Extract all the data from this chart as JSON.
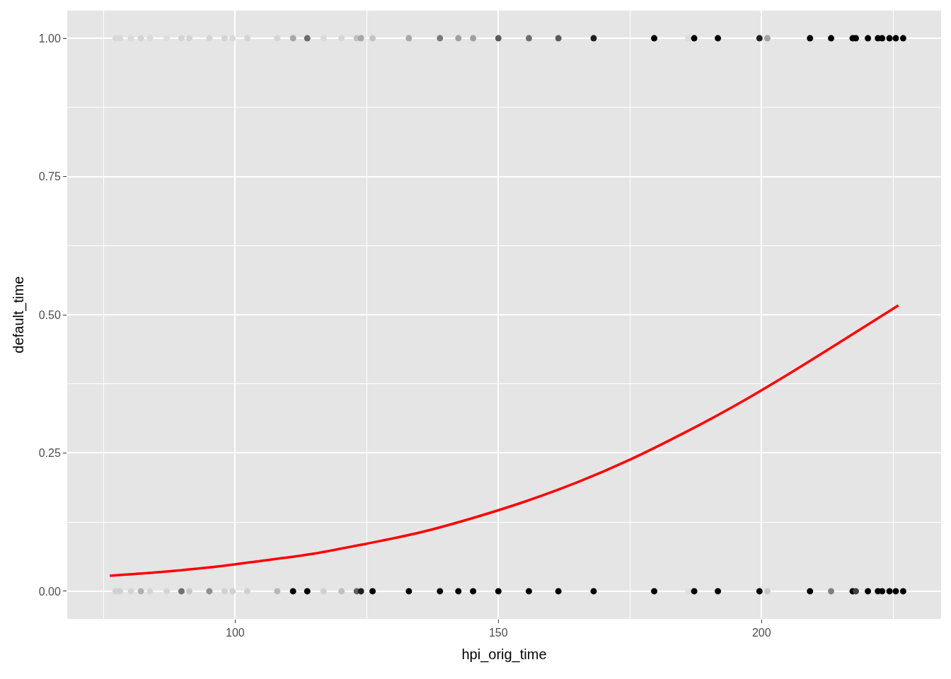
{
  "chart_data": {
    "type": "scatter",
    "xlabel": "hpi_orig_time",
    "ylabel": "default_time",
    "xlim": [
      68.1,
      234.1
    ],
    "ylim": [
      -0.05,
      1.05
    ],
    "xticks": [
      100,
      150,
      200
    ],
    "yticks": [
      {
        "value": 0,
        "label": "0.00"
      },
      {
        "value": 0.25,
        "label": "0.25"
      },
      {
        "value": 0.5,
        "label": "0.50"
      },
      {
        "value": 0.75,
        "label": "0.75"
      },
      {
        "value": 1,
        "label": "1.00"
      }
    ],
    "grid": true,
    "marker": "circle",
    "series": [
      {
        "x": [
          77.3,
          78.1,
          80.2,
          82.1,
          83.8,
          87.0,
          89.8,
          91.3,
          95.1,
          98.0,
          99.5,
          102.3,
          108.0,
          111.0,
          113.7,
          116.8,
          120.2,
          123.1,
          123.9,
          126.1,
          133.0,
          138.9,
          142.4,
          145.2,
          150.0,
          155.8,
          161.4,
          168.1,
          179.6,
          186.1,
          187.2,
          191.7,
          199.6,
          201.1,
          209.2,
          213.2,
          217.3,
          217.9,
          220.2,
          222.1,
          222.9,
          224.3,
          225.5,
          226.9
        ],
        "values": [
          1,
          1,
          1,
          1,
          1,
          1,
          1,
          1,
          1,
          1,
          1,
          1,
          1,
          1,
          1,
          1,
          1,
          1,
          1,
          1,
          1,
          1,
          1,
          1,
          1,
          1,
          1,
          1,
          1,
          1,
          1,
          1,
          1,
          1,
          1,
          1,
          1,
          1,
          1,
          1,
          1,
          1,
          1,
          1
        ],
        "colors": [
          "#d8d8d8",
          "#d8d8d8",
          "#dadada",
          "#d4d4d4",
          "#dadada",
          "#dedede",
          "#d4d4d4",
          "#d4d4d4",
          "#d4d4d4",
          "#d4d4d4",
          "#d8d8d8",
          "#d4d4d4",
          "#d6d6d6",
          "#a8a8a8",
          "#6a6a6a",
          "#dadada",
          "#d6d6d6",
          "#c0c0c0",
          "#a8a8a8",
          "#c4c4c4",
          "#a8a8a8",
          "#7a7a7a",
          "#a0a0a0",
          "#a0a0a0",
          "#5a5a5a",
          "#6e6e6e",
          "#5a5a5a",
          "#202020",
          "#000000",
          "#dddddd",
          "#000000",
          "#000000",
          "#202020",
          "#a0a0a0",
          "#000000",
          "#000000",
          "#000000",
          "#000000",
          "#000000",
          "#000000",
          "#000000",
          "#000000",
          "#000000",
          "#000000"
        ]
      },
      {
        "x": [
          77.3,
          78.1,
          80.2,
          82.1,
          83.8,
          87.0,
          89.8,
          91.3,
          95.1,
          98.0,
          99.5,
          102.3,
          108.0,
          111.0,
          113.7,
          116.8,
          120.2,
          123.1,
          123.9,
          126.1,
          133.0,
          138.9,
          142.4,
          145.2,
          150.0,
          155.8,
          161.4,
          168.1,
          179.6,
          186.1,
          187.2,
          191.7,
          199.6,
          201.1,
          209.2,
          213.2,
          217.3,
          217.9,
          220.2,
          222.1,
          222.9,
          224.3,
          225.5,
          226.9
        ],
        "values": [
          0,
          0,
          0,
          0,
          0,
          0,
          0,
          0,
          0,
          0,
          0,
          0,
          0,
          0,
          0,
          0,
          0,
          0,
          0,
          0,
          0,
          0,
          0,
          0,
          0,
          0,
          0,
          0,
          0,
          0,
          0,
          0,
          0,
          0,
          0,
          0,
          0,
          0,
          0,
          0,
          0,
          0,
          0,
          0
        ],
        "colors": [
          "#d0d0d0",
          "#d0d0d0",
          "#d4d4d4",
          "#b0b0b0",
          "#d4d4d4",
          "#d4d4d4",
          "#707070",
          "#c8c8c8",
          "#909090",
          "#d0d0d0",
          "#d0d0d0",
          "#d0d0d0",
          "#b8b8b8",
          "#000000",
          "#000000",
          "#d0d0d0",
          "#c0c0c0",
          "#606060",
          "#202020",
          "#000000",
          "#000000",
          "#000000",
          "#000000",
          "#000000",
          "#000000",
          "#000000",
          "#000000",
          "#000000",
          "#000000",
          "#e0e0e0",
          "#000000",
          "#000000",
          "#000000",
          "#c8c8c8",
          "#000000",
          "#808080",
          "#000000",
          "#404040",
          "#000000",
          "#000000",
          "#000000",
          "#000000",
          "#000000",
          "#000000"
        ]
      },
      {
        "type": "line",
        "color": "#ff0000",
        "marker": "none",
        "line_style": "solid",
        "x": [
          76.2,
          85,
          95,
          105,
          115,
          125,
          135,
          145,
          155,
          165,
          175,
          185,
          195,
          205,
          215,
          226
        ],
        "values": [
          0.028,
          0.034,
          0.043,
          0.055,
          0.068,
          0.086,
          0.106,
          0.132,
          0.162,
          0.197,
          0.238,
          0.285,
          0.336,
          0.392,
          0.451,
          0.517
        ]
      }
    ]
  }
}
